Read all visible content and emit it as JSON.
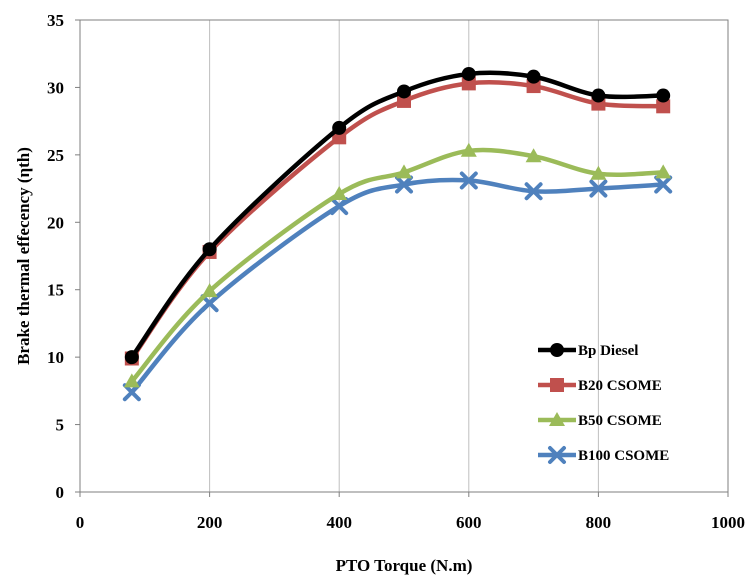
{
  "chart_data": {
    "type": "line",
    "title": "",
    "xlabel": "PTO Torque (N.m)",
    "ylabel": "Brake thermal effecency (ηth)",
    "xlim": [
      0,
      1000
    ],
    "ylim": [
      0,
      35
    ],
    "xticks": [
      0,
      200,
      400,
      600,
      800,
      1000
    ],
    "yticks": [
      0,
      5,
      10,
      15,
      20,
      25,
      30,
      35
    ],
    "grid": "vertical",
    "legend_position": "lower-right",
    "series": [
      {
        "name": "Bp Diesel",
        "color": "#000000",
        "marker": "circle",
        "x": [
          80,
          200,
          400,
          500,
          600,
          700,
          800,
          900
        ],
        "y": [
          10.0,
          18.0,
          27.0,
          29.7,
          31.0,
          30.8,
          29.4,
          29.4
        ]
      },
      {
        "name": "B20 CSOME",
        "color": "#c0504d",
        "marker": "square",
        "x": [
          80,
          200,
          400,
          500,
          600,
          700,
          800,
          900
        ],
        "y": [
          9.9,
          17.8,
          26.3,
          29.0,
          30.3,
          30.1,
          28.8,
          28.6
        ]
      },
      {
        "name": "B50 CSOME",
        "color": "#9bbb59",
        "marker": "triangle",
        "x": [
          80,
          200,
          400,
          500,
          600,
          700,
          800,
          900
        ],
        "y": [
          8.2,
          14.9,
          22.1,
          23.7,
          25.3,
          24.9,
          23.6,
          23.7
        ]
      },
      {
        "name": "B100 CSOME",
        "color": "#4f81bd",
        "marker": "x",
        "x": [
          80,
          200,
          400,
          500,
          600,
          700,
          800,
          900
        ],
        "y": [
          7.4,
          14.0,
          21.2,
          22.8,
          23.1,
          22.3,
          22.5,
          22.8
        ]
      }
    ]
  }
}
